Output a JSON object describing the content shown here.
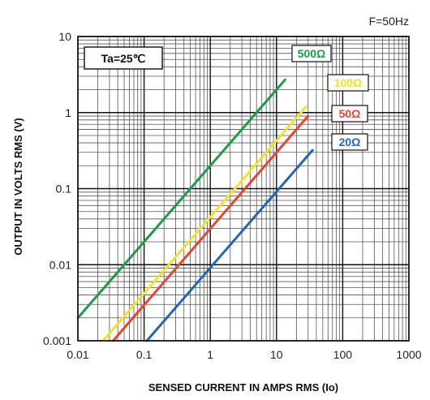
{
  "chart_data": {
    "type": "line",
    "scale": {
      "x": "log",
      "y": "log"
    },
    "xlim": [
      0.01,
      1000
    ],
    "ylim": [
      0.001,
      10
    ],
    "x_ticks": [
      "0.01",
      "0.1",
      "1",
      "10",
      "100",
      "1000"
    ],
    "y_ticks": [
      "0.001",
      "0.01",
      "0.1",
      "1",
      "10"
    ],
    "xlabel": "SENSED CURRENT IN AMPS RMS (Io)",
    "ylabel": "OUTPUT  IN  VOLTS RMS (V)",
    "grid": true,
    "legend_placement": "top-right",
    "annotations": {
      "condition": "Ta=25℃",
      "frequency": "F=50Hz"
    },
    "series": [
      {
        "name": "500Ω",
        "color": "#1e9b45",
        "x": [
          0.01,
          13.5
        ],
        "y": [
          0.002,
          2.7
        ]
      },
      {
        "name": "100Ω",
        "color": "#f3e12b",
        "x": [
          0.024,
          28
        ],
        "y": [
          0.001,
          1.2
        ]
      },
      {
        "name": "50Ω",
        "color": "#e8452c",
        "x": [
          0.034,
          30
        ],
        "y": [
          0.001,
          0.9
        ]
      },
      {
        "name": "20Ω",
        "color": "#2266b5",
        "x": [
          0.11,
          35
        ],
        "y": [
          0.001,
          0.32
        ]
      }
    ]
  }
}
